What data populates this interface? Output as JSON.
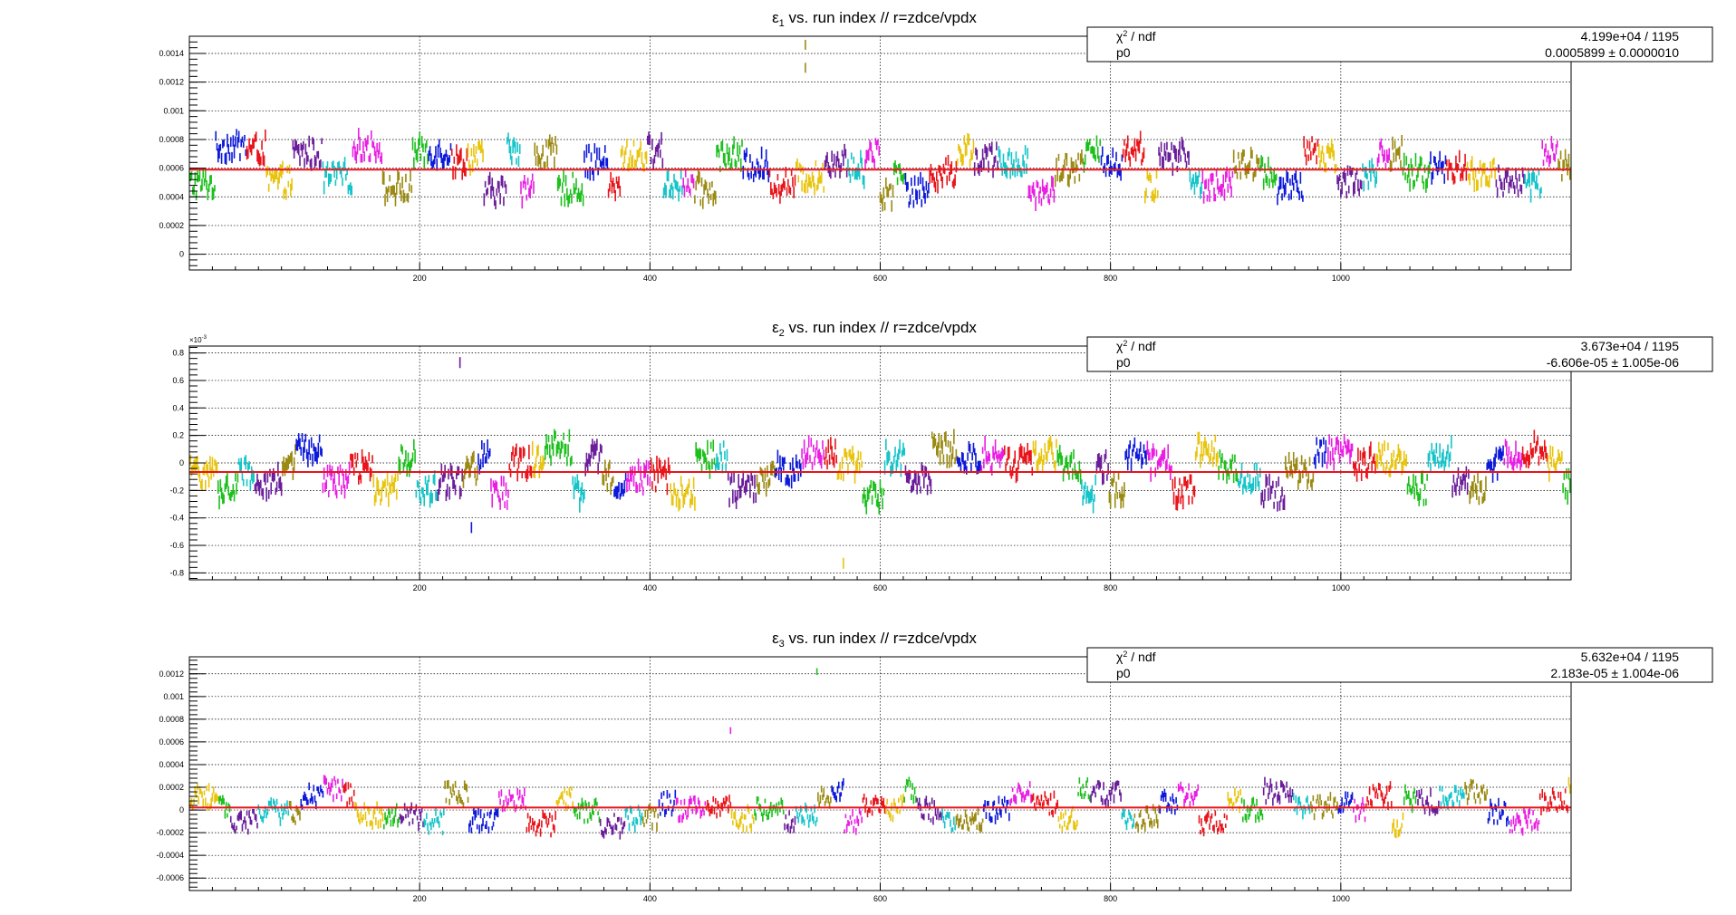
{
  "chart_data": [
    {
      "type": "scatter",
      "title_main": "ε",
      "title_sub": "1",
      "title_rest": " vs. run index // r=zdce/vpdx",
      "stats": {
        "row1_label_main": "χ",
        "row1_label_sup": "2",
        "row1_label_rest": " / ndf",
        "row1_value": "4.199e+04 / 1195",
        "row2_label": "p0",
        "row2_value": "0.0005899 ± 0.0000010"
      },
      "xlim": [
        0,
        1200
      ],
      "ylim": [
        -0.00011,
        0.00152
      ],
      "x_ticks": [
        200,
        400,
        600,
        800,
        1000
      ],
      "x_tick_labels": [
        "200",
        "400",
        "600",
        "800",
        "1000"
      ],
      "y_ticks": [
        0,
        0.0002,
        0.0004,
        0.0006,
        0.0008,
        0.001,
        0.0012,
        0.0014
      ],
      "y_tick_labels": [
        "0",
        "0.0002",
        "0.0004",
        "0.0006",
        "0.0008",
        "0.001",
        "0.0012",
        "0.0014"
      ],
      "y_exponent": "",
      "grid": true,
      "fit_value": 0.0005899,
      "fit_color": "#e8141b",
      "noise_scale": 0.00021,
      "point_error": 3.5e-05,
      "outliers": [
        [
          535,
          0.00146
        ],
        [
          535,
          0.0013
        ]
      ],
      "segment_colors": [
        "#1dbf1d",
        "#0c19d9",
        "#e8141b",
        "#e8c40e",
        "#6a1d99",
        "#15c4c9",
        "#e91ee3",
        "#9a8a13"
      ]
    },
    {
      "type": "scatter",
      "title_main": "ε",
      "title_sub": "2",
      "title_rest": " vs. run index // r=zdce/vpdx",
      "stats": {
        "row1_label_main": "χ",
        "row1_label_sup": "2",
        "row1_label_rest": " / ndf",
        "row1_value": "3.673e+04 / 1195",
        "row2_label": "p0",
        "row2_value": "-6.606e-05 ± 1.005e-06"
      },
      "xlim": [
        0,
        1200
      ],
      "ylim": [
        -0.85,
        0.85
      ],
      "x_ticks": [
        200,
        400,
        600,
        800,
        1000
      ],
      "x_tick_labels": [
        "200",
        "400",
        "600",
        "800",
        "1000"
      ],
      "y_ticks": [
        -0.8,
        -0.6,
        -0.4,
        -0.2,
        0,
        0.2,
        0.4,
        0.6,
        0.8
      ],
      "y_tick_labels": [
        "-0.8",
        "-0.6",
        "-0.4",
        "-0.2",
        "0",
        "0.2",
        "0.4",
        "0.6",
        "0.8"
      ],
      "y_exponent": "×10",
      "y_exponent_power": "-3",
      "grid": true,
      "fit_value": -0.066,
      "fit_color": "#e8141b",
      "noise_scale": 0.22,
      "point_error": 0.04,
      "outliers": [
        [
          235,
          0.73
        ],
        [
          568,
          -0.73
        ],
        [
          245,
          -0.47
        ]
      ],
      "segment_colors": [
        "#e8c40e",
        "#1dbf1d",
        "#15c4c9",
        "#6a1d99",
        "#9a8a13",
        "#0c19d9",
        "#e91ee3",
        "#e8141b"
      ]
    },
    {
      "type": "scatter",
      "title_main": "ε",
      "title_sub": "3",
      "title_rest": " vs. run index // r=zdce/vpdx",
      "stats": {
        "row1_label_main": "χ",
        "row1_label_sup": "2",
        "row1_label_rest": " / ndf",
        "row1_value": "5.632e+04 / 1195",
        "row2_label": "p0",
        "row2_value": "2.183e-05 ± 1.004e-06"
      },
      "xlim": [
        0,
        1200
      ],
      "ylim": [
        -0.00071,
        0.00135
      ],
      "x_ticks": [
        200,
        400,
        600,
        800,
        1000
      ],
      "x_tick_labels": [
        "200",
        "400",
        "600",
        "800",
        "1000"
      ],
      "y_ticks": [
        -0.0006,
        -0.0004,
        -0.0002,
        0,
        0.0002,
        0.0004,
        0.0006,
        0.0008,
        0.001,
        0.0012
      ],
      "y_tick_labels": [
        "-0.0006",
        "-0.0004",
        "-0.0002",
        "0",
        "0.0002",
        "0.0004",
        "0.0006",
        "0.0008",
        "0.001",
        "0.0012"
      ],
      "y_exponent": "",
      "grid": true,
      "fit_value": 2.183e-05,
      "fit_color": "#e8141b",
      "noise_scale": 0.00021,
      "point_error": 3e-05,
      "outliers": [
        [
          545,
          0.00122
        ],
        [
          470,
          0.0007
        ]
      ],
      "segment_colors": [
        "#e8c40e",
        "#1dbf1d",
        "#6a1d99",
        "#15c4c9",
        "#9a8a13",
        "#0c19d9",
        "#e91ee3",
        "#e8141b"
      ]
    }
  ]
}
